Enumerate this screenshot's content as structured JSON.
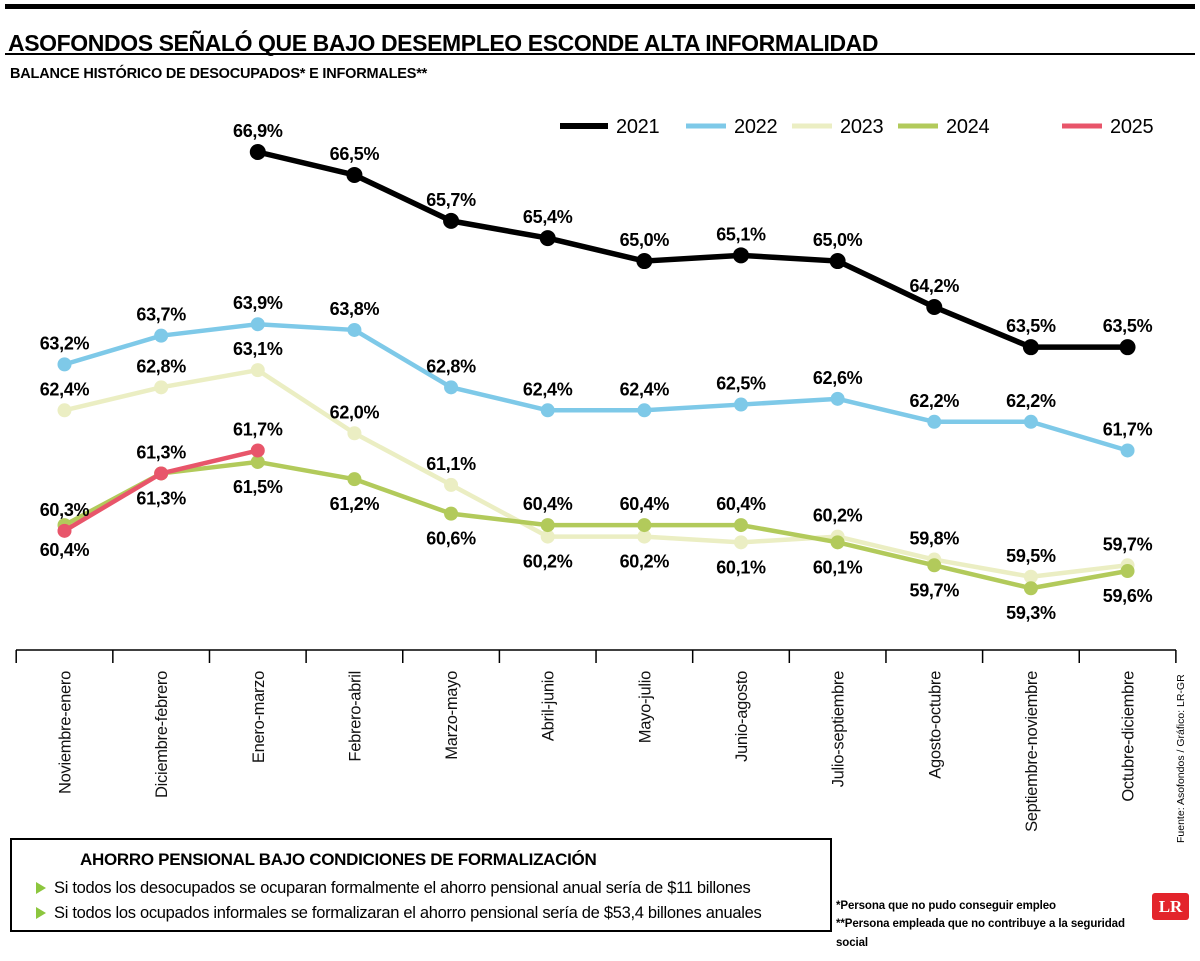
{
  "header": {
    "title": "ASOFONDOS SEÑALÓ QUE BAJO DESEMPLEO ESCONDE ALTA INFORMALIDAD",
    "subtitle": "BALANCE HISTÓRICO DE DESOCUPADOS* E INFORMALES**"
  },
  "chart_data": {
    "type": "line",
    "categories": [
      "Noviembre-enero",
      "Diciembre-febrero",
      "Enero-marzo",
      "Febrero-abril",
      "Marzo-mayo",
      "Abril-junio",
      "Mayo-julio",
      "Junio-agosto",
      "Julio-septiembre",
      "Agosto-octubre",
      "Septiembre-noviembre",
      "Octubre-diciembre"
    ],
    "ylim": [
      58.2,
      67.9
    ],
    "grid": false,
    "legend_position": "top-right",
    "value_format": "percent-comma-1dp",
    "series": [
      {
        "name": "2021",
        "color": "#000000",
        "values": [
          null,
          null,
          66.9,
          66.5,
          65.7,
          65.4,
          65.0,
          65.1,
          65.0,
          64.2,
          63.5,
          63.5
        ],
        "label_pos": [
          "above",
          "above",
          "above",
          "above",
          "above",
          "above",
          "above",
          "above",
          "above",
          "above",
          "above",
          "above"
        ]
      },
      {
        "name": "2022",
        "color": "#7ec9e8",
        "values": [
          63.2,
          63.7,
          63.9,
          63.8,
          62.8,
          62.4,
          62.4,
          62.5,
          62.6,
          62.2,
          62.2,
          61.7
        ],
        "label_pos": [
          "above",
          "above",
          "above",
          "above",
          "above",
          "above",
          "above",
          "above",
          "above",
          "above",
          "above",
          "above"
        ]
      },
      {
        "name": "2023",
        "color": "#ebeec3",
        "values": [
          62.4,
          62.8,
          63.1,
          62.0,
          61.1,
          60.2,
          60.2,
          60.1,
          60.2,
          59.8,
          59.5,
          59.7
        ],
        "label_pos": [
          "above",
          "above",
          "above",
          "above",
          "above",
          "below",
          "below",
          "below",
          "above",
          "above",
          "above",
          "above"
        ]
      },
      {
        "name": "2024",
        "color": "#b2ca5b",
        "values": [
          60.4,
          61.3,
          61.5,
          61.2,
          60.6,
          60.4,
          60.4,
          60.4,
          60.1,
          59.7,
          59.3,
          59.6
        ],
        "label_pos": [
          "below",
          "below",
          "below",
          "below",
          "below",
          "above",
          "above",
          "above",
          "below",
          "below",
          "below",
          "below"
        ]
      },
      {
        "name": "2025",
        "color": "#e8556a",
        "values": [
          60.3,
          61.3,
          61.7,
          null,
          null,
          null,
          null,
          null,
          null,
          null,
          null,
          null
        ],
        "label_pos": [
          "above",
          "above",
          "above",
          "above",
          "above",
          "above",
          "above",
          "above",
          "above",
          "above",
          "above",
          "above"
        ]
      }
    ]
  },
  "savings_box": {
    "title": "AHORRO PENSIONAL BAJO CONDICIONES DE FORMALIZACIÓN",
    "bullet_color": "#8cc63e",
    "items": [
      "Si todos los desocupados se ocuparan formalmente el ahorro pensional anual sería de $11 billones",
      "Si todos los ocupados informales se formalizaran el ahorro pensional sería de $53,4 billones anuales"
    ]
  },
  "footnotes": [
    "*Persona que no pudo conseguir empleo",
    "**Persona empleada que no contribuye a la seguridad social"
  ],
  "source": "Fuente: Asofondos / Gráfico: LR-GR",
  "logo": {
    "text": "LR",
    "color": "#e3242b"
  }
}
